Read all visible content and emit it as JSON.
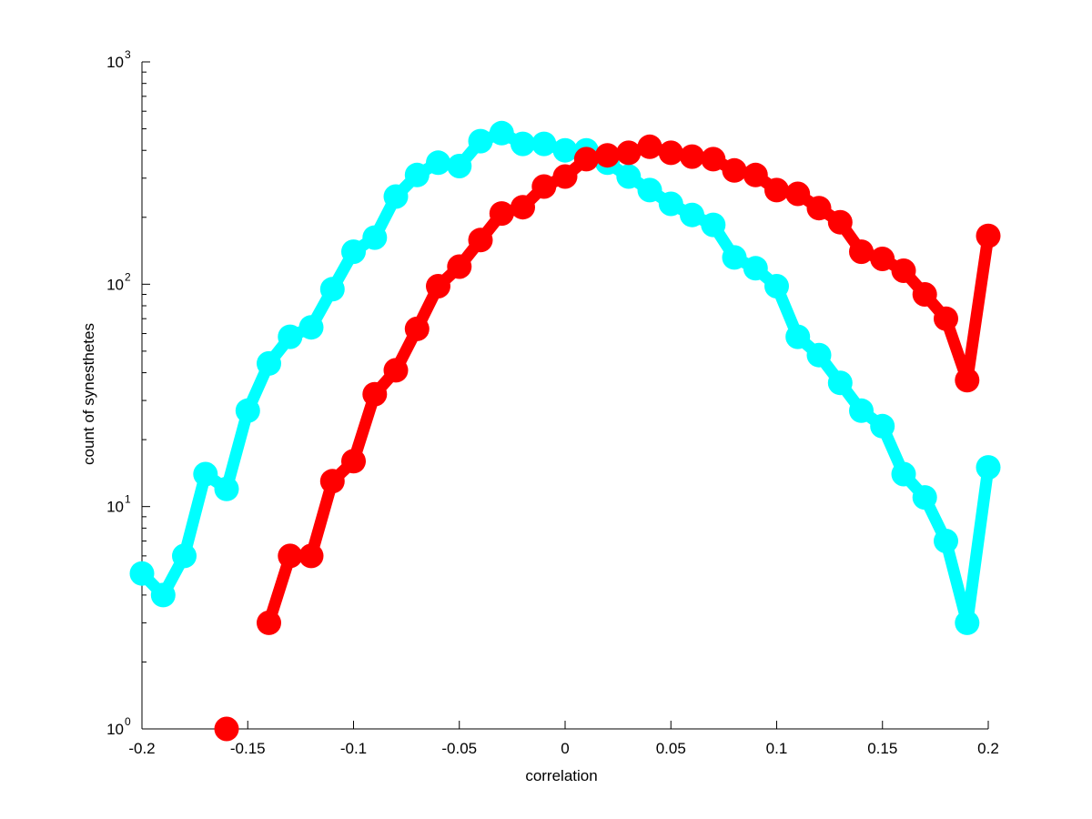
{
  "chart_data": {
    "type": "line",
    "title": "",
    "xlabel": "correlation",
    "ylabel": "count of synesthetes",
    "xlim": [
      -0.2,
      0.2
    ],
    "ylim": [
      1,
      1000
    ],
    "yscale": "log",
    "grid": false,
    "legend": "none",
    "x_ticks": [
      -0.2,
      -0.15,
      -0.1,
      -0.05,
      0,
      0.05,
      0.1,
      0.15,
      0.2
    ],
    "x_tick_labels": [
      "-0.2",
      "-0.15",
      "-0.1",
      "-0.05",
      "0",
      "0.05",
      "0.1",
      "0.15",
      "0.2"
    ],
    "y_ticks": [
      {
        "value": 1,
        "base": "10",
        "exp": "0"
      },
      {
        "value": 10,
        "base": "10",
        "exp": "1"
      },
      {
        "value": 100,
        "base": "10",
        "exp": "2"
      },
      {
        "value": 1000,
        "base": "10",
        "exp": "3"
      }
    ],
    "series": [
      {
        "color": "#00ffff",
        "x": [
          -0.2,
          -0.19,
          -0.18,
          -0.17,
          -0.16,
          -0.15,
          -0.14,
          -0.13,
          -0.12,
          -0.11,
          -0.1,
          -0.09,
          -0.08,
          -0.07,
          -0.06,
          -0.05,
          -0.04,
          -0.03,
          -0.02,
          -0.01,
          0,
          0.01,
          0.02,
          0.03,
          0.04,
          0.05,
          0.06,
          0.07,
          0.08,
          0.09,
          0.1,
          0.11,
          0.12,
          0.13,
          0.14,
          0.15,
          0.16,
          0.17,
          0.18,
          0.19,
          0.2
        ],
        "values": [
          5,
          4,
          6,
          14,
          12,
          27,
          44,
          58,
          64,
          95,
          140,
          162,
          248,
          310,
          352,
          340,
          440,
          478,
          428,
          428,
          400,
          400,
          352,
          305,
          265,
          230,
          205,
          185,
          132,
          118,
          98,
          58,
          48,
          36,
          27,
          23,
          14,
          11,
          7,
          3,
          15
        ]
      },
      {
        "color": "#ff0000",
        "x": [
          -0.16,
          -0.14,
          -0.13,
          -0.12,
          -0.11,
          -0.1,
          -0.09,
          -0.08,
          -0.07,
          -0.06,
          -0.05,
          -0.04,
          -0.03,
          -0.02,
          -0.01,
          0,
          0.01,
          0.02,
          0.03,
          0.04,
          0.05,
          0.06,
          0.07,
          0.08,
          0.09,
          0.1,
          0.11,
          0.12,
          0.13,
          0.14,
          0.15,
          0.16,
          0.17,
          0.18,
          0.19,
          0.2
        ],
        "values": [
          1,
          3,
          6,
          6,
          13,
          16,
          32,
          41,
          63,
          98,
          120,
          158,
          208,
          222,
          275,
          305,
          365,
          380,
          390,
          415,
          390,
          375,
          365,
          325,
          310,
          265,
          255,
          220,
          190,
          140,
          130,
          115,
          90,
          70,
          37,
          165
        ],
        "segments": [
          [
            0,
            0
          ],
          [
            1,
            35
          ]
        ]
      }
    ]
  }
}
